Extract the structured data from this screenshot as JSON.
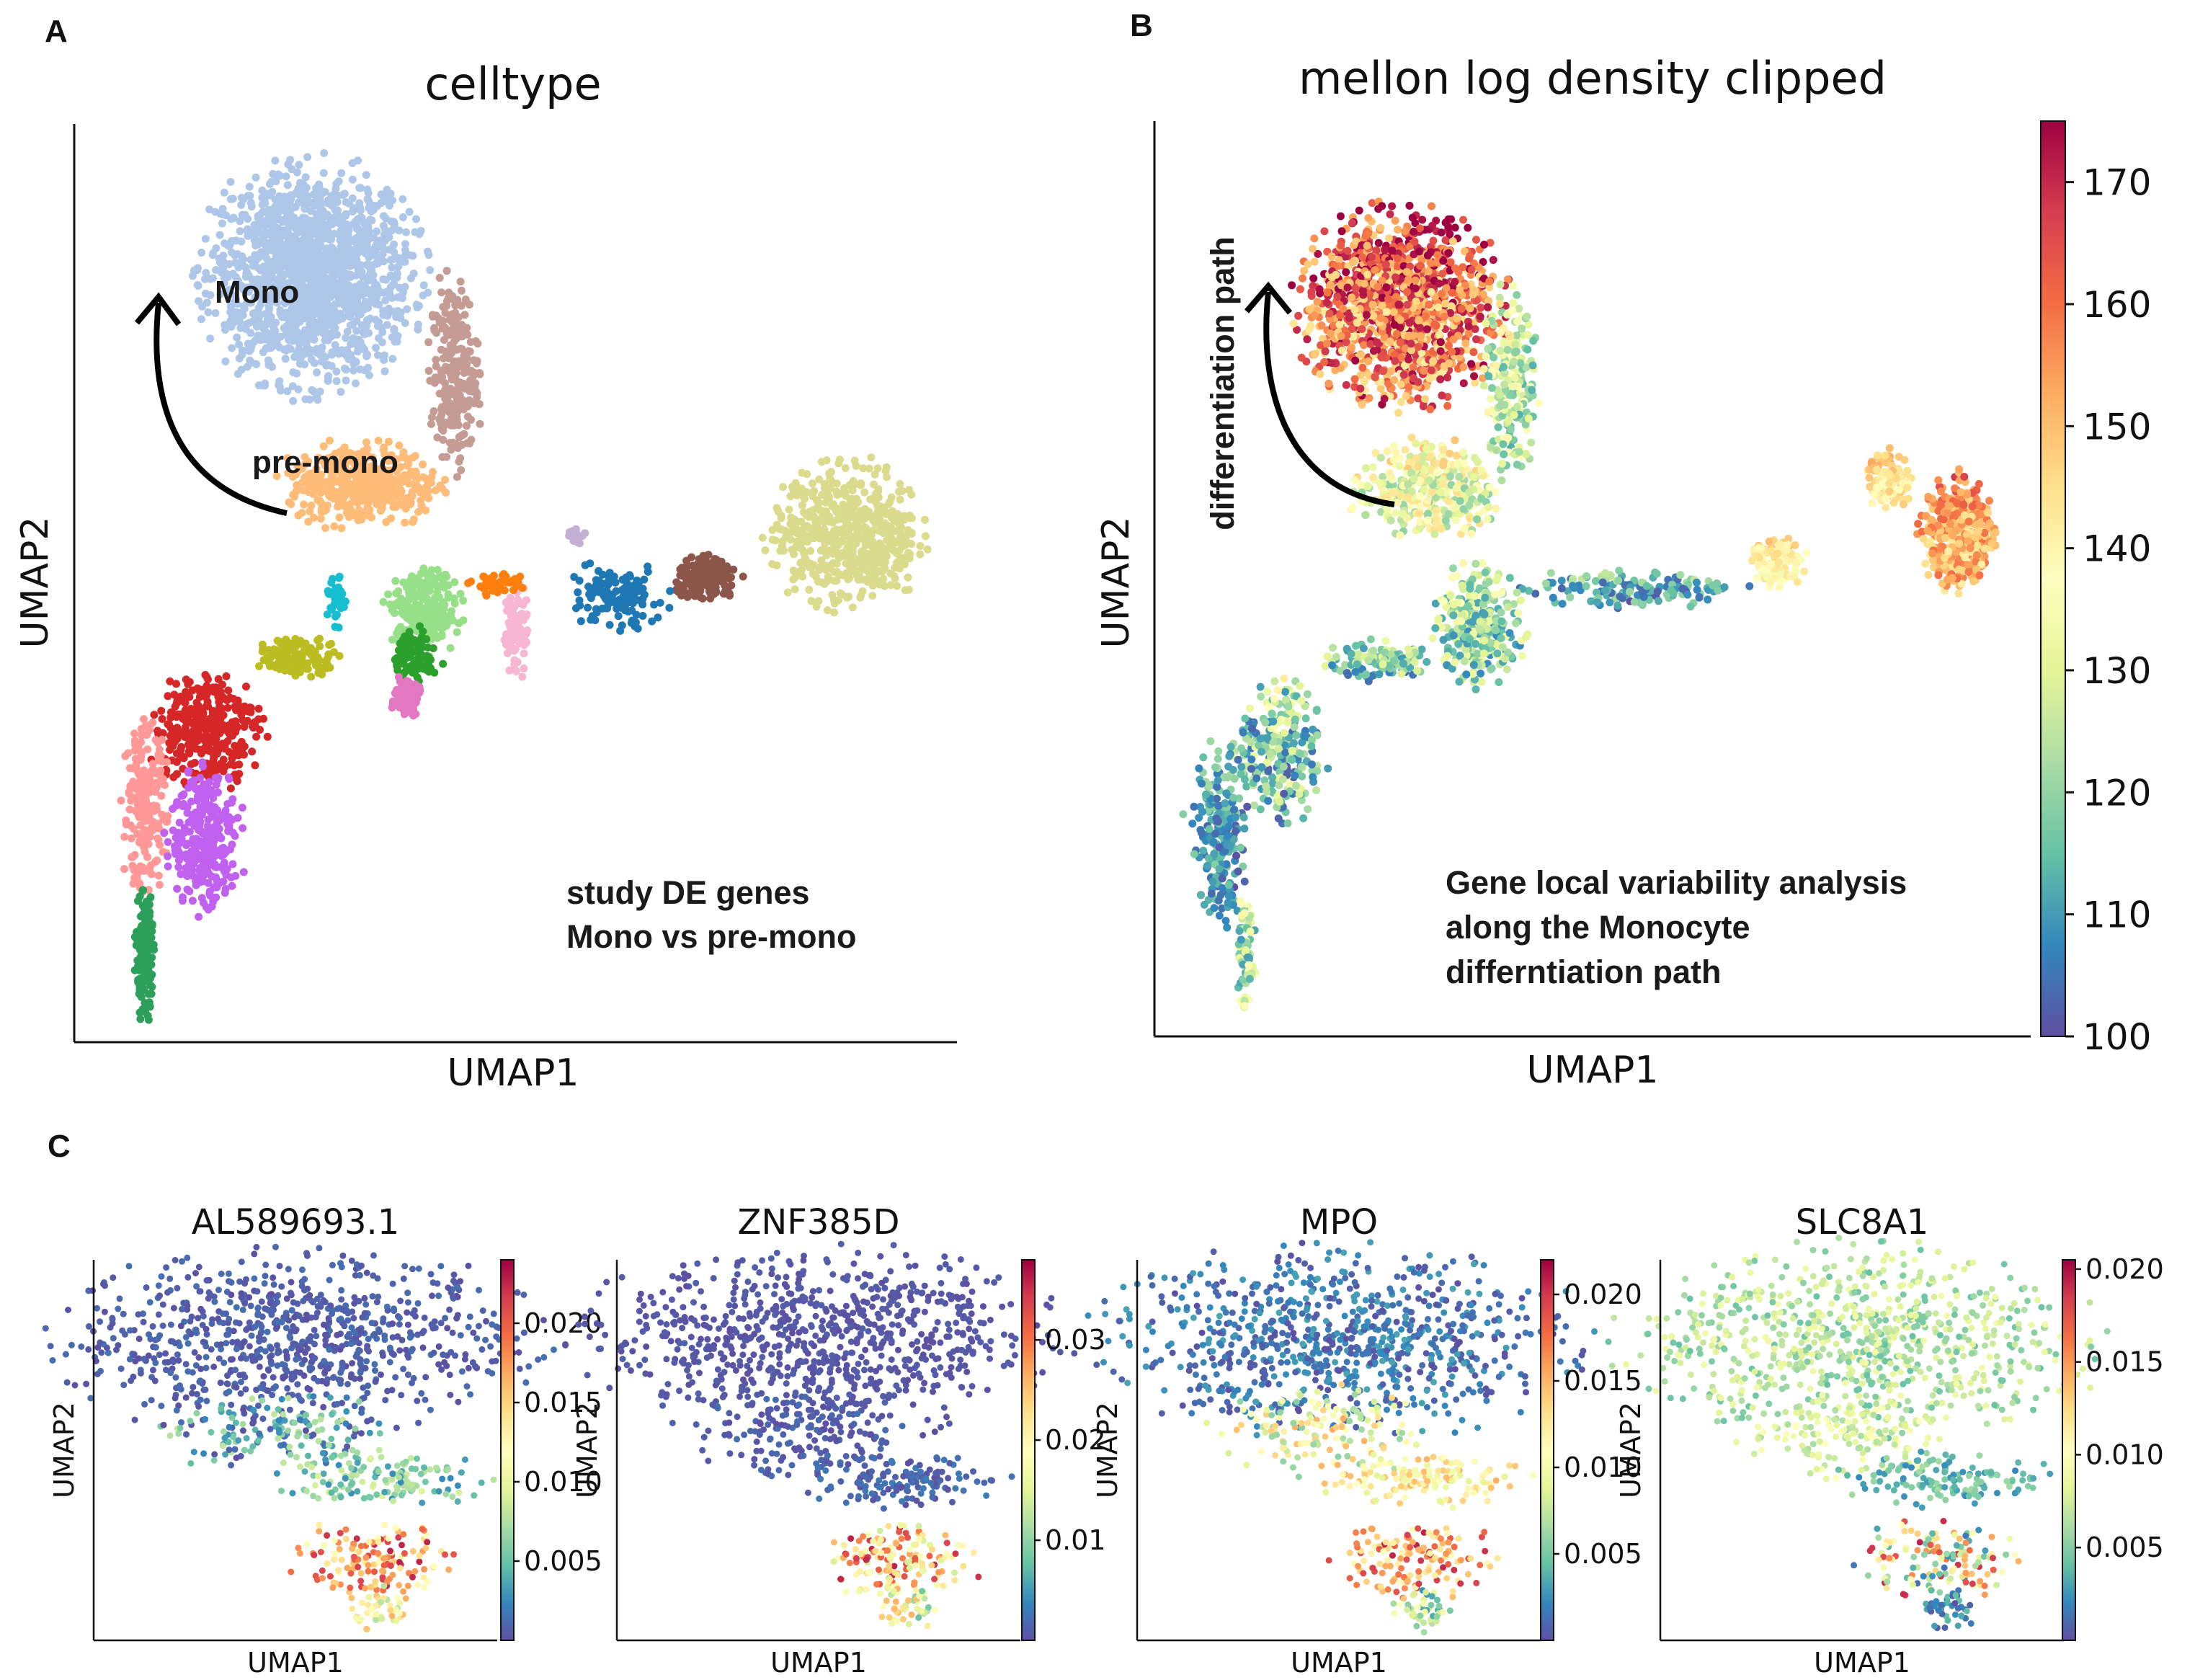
{
  "panel_labels": {
    "a": "A",
    "b": "B",
    "c": "C"
  },
  "colors": {
    "spectral_r": [
      "#5e4fa2",
      "#3288bd",
      "#66c2a5",
      "#abdda4",
      "#e6f598",
      "#ffffbf",
      "#fee08b",
      "#fdae61",
      "#f46d43",
      "#d53e4f",
      "#9e0142"
    ],
    "arrow": "#000000"
  },
  "chart_data": [
    {
      "id": "A",
      "type": "scatter",
      "title": "celltype",
      "xlabel": "UMAP1",
      "ylabel": "UMAP2",
      "grid": false,
      "legend": "none",
      "annotations": {
        "mono": "Mono",
        "premono": "pre-mono",
        "study_line1": "study DE genes",
        "study_line2": "Mono vs pre-mono"
      },
      "clusters": [
        {
          "color": "#aec7e8",
          "cx": 0.265,
          "cy": 0.84,
          "rx": 0.115,
          "ry": 0.115,
          "n": 1500
        },
        {
          "color": "#ffbb78",
          "cx": 0.325,
          "cy": 0.61,
          "rx": 0.085,
          "ry": 0.045,
          "n": 420
        },
        {
          "color": "#c49c94",
          "cx": 0.43,
          "cy": 0.73,
          "rx": 0.028,
          "ry": 0.1,
          "n": 240
        },
        {
          "color": "#dbdb8d",
          "cx": 0.88,
          "cy": 0.555,
          "rx": 0.085,
          "ry": 0.075,
          "n": 560
        },
        {
          "color": "#8c564b",
          "cx": 0.72,
          "cy": 0.505,
          "rx": 0.035,
          "ry": 0.026,
          "n": 160
        },
        {
          "color": "#1f77b4",
          "cx": 0.615,
          "cy": 0.485,
          "rx": 0.055,
          "ry": 0.035,
          "n": 120
        },
        {
          "color": "#98df8a",
          "cx": 0.395,
          "cy": 0.47,
          "rx": 0.04,
          "ry": 0.045,
          "n": 260
        },
        {
          "color": "#2ca02c",
          "cx": 0.385,
          "cy": 0.42,
          "rx": 0.025,
          "ry": 0.03,
          "n": 90
        },
        {
          "color": "#e377c2",
          "cx": 0.375,
          "cy": 0.375,
          "rx": 0.016,
          "ry": 0.022,
          "n": 100
        },
        {
          "color": "#f7b6d2",
          "cx": 0.5,
          "cy": 0.45,
          "rx": 0.015,
          "ry": 0.05,
          "n": 80
        },
        {
          "color": "#ff7f0e",
          "cx": 0.48,
          "cy": 0.5,
          "rx": 0.03,
          "ry": 0.012,
          "n": 40
        },
        {
          "color": "#17becf",
          "cx": 0.295,
          "cy": 0.48,
          "rx": 0.01,
          "ry": 0.025,
          "n": 40
        },
        {
          "color": "#bcbd22",
          "cx": 0.25,
          "cy": 0.42,
          "rx": 0.05,
          "ry": 0.02,
          "n": 130
        },
        {
          "color": "#d62728",
          "cx": 0.145,
          "cy": 0.34,
          "rx": 0.06,
          "ry": 0.06,
          "n": 340
        },
        {
          "color": "#ff9896",
          "cx": 0.075,
          "cy": 0.25,
          "rx": 0.025,
          "ry": 0.09,
          "n": 200
        },
        {
          "color": "#c061f0",
          "cx": 0.145,
          "cy": 0.22,
          "rx": 0.04,
          "ry": 0.075,
          "n": 300
        },
        {
          "color": "#2ca05a",
          "cx": 0.075,
          "cy": 0.09,
          "rx": 0.01,
          "ry": 0.07,
          "n": 160
        },
        {
          "color": "#c5b0d5",
          "cx": 0.57,
          "cy": 0.555,
          "rx": 0.01,
          "ry": 0.01,
          "n": 12
        }
      ]
    },
    {
      "id": "B",
      "type": "scatter",
      "title": "mellon log density clipped",
      "xlabel": "UMAP1",
      "ylabel": "UMAP2",
      "colorbar": {
        "min": 100,
        "max": 175,
        "ticks": [
          100,
          110,
          120,
          130,
          140,
          150,
          160,
          170
        ]
      },
      "annotations": {
        "path": "differentiation path",
        "gene_line1": "Gene local variability analysis",
        "gene_line2": "along the Monocyte",
        "gene_line3": "differntiation path"
      }
    },
    {
      "id": "C1",
      "type": "scatter",
      "title": "AL589693.1",
      "xlabel": "UMAP1",
      "ylabel": "UMAP2",
      "colorbar": {
        "min": 0.0,
        "max": 0.024,
        "ticks": [
          0.005,
          0.01,
          0.015,
          0.02
        ],
        "tick_labels": [
          "0.005",
          "0.010",
          "0.015",
          "0.020"
        ]
      }
    },
    {
      "id": "C2",
      "type": "scatter",
      "title": "ZNF385D",
      "xlabel": "UMAP1",
      "ylabel": "UMAP2",
      "colorbar": {
        "min": 0.0,
        "max": 0.038,
        "ticks": [
          0.01,
          0.02,
          0.03
        ],
        "tick_labels": [
          "0.01",
          "0.02",
          "0.03"
        ]
      }
    },
    {
      "id": "C3",
      "type": "scatter",
      "title": "MPO",
      "xlabel": "UMAP1",
      "ylabel": "UMAP2",
      "colorbar": {
        "min": 0.0,
        "max": 0.022,
        "ticks": [
          0.005,
          0.01,
          0.015,
          0.02
        ],
        "tick_labels": [
          "0.005",
          "0.010",
          "0.015",
          "0.020"
        ]
      }
    },
    {
      "id": "C4",
      "type": "scatter",
      "title": "SLC8A1",
      "xlabel": "UMAP1",
      "ylabel": "UMAP2",
      "colorbar": {
        "min": 0.0,
        "max": 0.0205,
        "ticks": [
          0.005,
          0.01,
          0.015,
          0.02
        ],
        "tick_labels": [
          "0.005",
          "0.010",
          "0.015",
          "0.020"
        ]
      }
    }
  ]
}
